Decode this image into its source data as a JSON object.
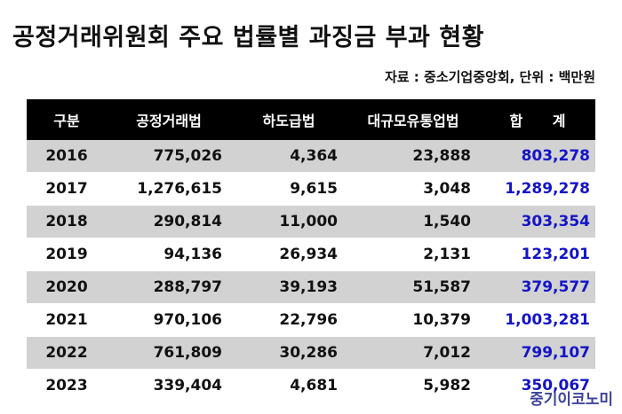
{
  "title": "공정거래위원회 주요 법률별 과징금 부과 현황",
  "source": "자료 : 중소기업중앙회, 단위 : 백만원",
  "watermark": "중기이코노미",
  "colors": {
    "header_bg": "#000000",
    "stripe": "#d2d2d2",
    "total_text": "#1414c8"
  },
  "chart_data": {
    "type": "table",
    "columns": [
      "구분",
      "공정거래법",
      "하도급법",
      "대규모유통업법",
      "합 계"
    ],
    "rows": [
      [
        "2016",
        "775,026",
        "4,364",
        "23,888",
        "803,278"
      ],
      [
        "2017",
        "1,276,615",
        "9,615",
        "3,048",
        "1,289,278"
      ],
      [
        "2018",
        "290,814",
        "11,000",
        "1,540",
        "303,354"
      ],
      [
        "2019",
        "94,136",
        "26,934",
        "2,131",
        "123,201"
      ],
      [
        "2020",
        "288,797",
        "39,193",
        "51,587",
        "379,577"
      ],
      [
        "2021",
        "970,106",
        "22,796",
        "10,379",
        "1,003,281"
      ],
      [
        "2022",
        "761,809",
        "30,286",
        "7,012",
        "799,107"
      ],
      [
        "2023",
        "339,404",
        "4,681",
        "5,982",
        "350,067"
      ]
    ]
  }
}
